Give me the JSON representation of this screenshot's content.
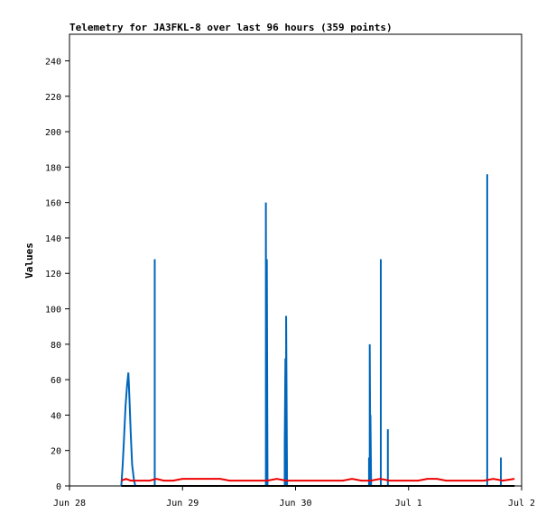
{
  "chart_data": {
    "type": "line",
    "title": "Telemetry for JA3FKL-8 over last 96 hours (359 points)",
    "xlabel": "",
    "ylabel": "Values",
    "x_unit": "hours",
    "xlim": [
      0,
      96
    ],
    "ylim": [
      0,
      255
    ],
    "y_ticks": [
      0,
      20,
      40,
      60,
      80,
      100,
      120,
      140,
      160,
      180,
      200,
      220,
      240
    ],
    "x_ticks": [
      {
        "label": "Jun 28",
        "hour": 0
      },
      {
        "label": "Jun 29",
        "hour": 24
      },
      {
        "label": "Jun 30",
        "hour": 48
      },
      {
        "label": "Jul 1",
        "hour": 72
      },
      {
        "label": "Jul 2",
        "hour": 96
      }
    ],
    "grid": false,
    "legend": "none",
    "series": [
      {
        "color": "#0066bb",
        "x": [
          11.0,
          11.3,
          11.6,
          11.9,
          12.2,
          12.5,
          12.6,
          12.75,
          13.0,
          13.3,
          13.7,
          14.0,
          18.1,
          18.1,
          18.1,
          18.4,
          41.7,
          41.7,
          41.75,
          41.75,
          41.9,
          41.9,
          42.05,
          42.1,
          42.4,
          42.6,
          45.7,
          45.7,
          45.85,
          45.85,
          46.0,
          46.0,
          46.2,
          46.5,
          63.6,
          63.6,
          63.75,
          63.75,
          63.9,
          63.9,
          64.05,
          64.2,
          66.1,
          66.1,
          66.1,
          66.3,
          67.6,
          67.6,
          67.6,
          68.0,
          88.7,
          88.7,
          88.7,
          89.0,
          91.6,
          91.6,
          91.6,
          92.0
        ],
        "y": [
          0,
          12,
          28,
          45,
          56,
          64,
          58,
          48,
          30,
          12,
          3,
          0,
          0,
          128,
          0,
          0,
          0,
          160,
          80,
          0,
          0,
          128,
          0,
          0,
          0,
          0,
          0,
          24,
          72,
          0,
          0,
          96,
          0,
          0,
          0,
          16,
          0,
          80,
          0,
          40,
          0,
          0,
          0,
          128,
          0,
          0,
          0,
          32,
          0,
          0,
          0,
          176,
          0,
          0,
          0,
          16,
          0,
          0
        ]
      },
      {
        "color": "#ee0000",
        "x": [
          11.0,
          12.0,
          13.0,
          14.0,
          15.5,
          17.0,
          18.5,
          20.0,
          22.0,
          24.0,
          26.0,
          28.0,
          30.0,
          32.0,
          34.0,
          36.0,
          38.0,
          40.0,
          42.0,
          44.0,
          46.0,
          48.0,
          50.0,
          52.0,
          54.0,
          56.0,
          58.0,
          60.0,
          62.0,
          64.0,
          66.0,
          68.0,
          70.0,
          72.0,
          74.0,
          76.0,
          78.0,
          80.0,
          82.0,
          84.0,
          86.0,
          88.0,
          90.0,
          92.0,
          94.5
        ],
        "y": [
          3,
          4,
          3,
          3,
          3,
          3,
          4,
          3,
          3,
          4,
          4,
          4,
          4,
          4,
          3,
          3,
          3,
          3,
          3,
          4,
          3,
          3,
          3,
          3,
          3,
          3,
          3,
          4,
          3,
          3,
          4,
          3,
          3,
          3,
          3,
          4,
          4,
          3,
          3,
          3,
          3,
          3,
          4,
          3,
          4
        ]
      },
      {
        "color": "#000000",
        "x": [
          11.0,
          94.5
        ],
        "y": [
          0,
          0
        ]
      }
    ]
  }
}
